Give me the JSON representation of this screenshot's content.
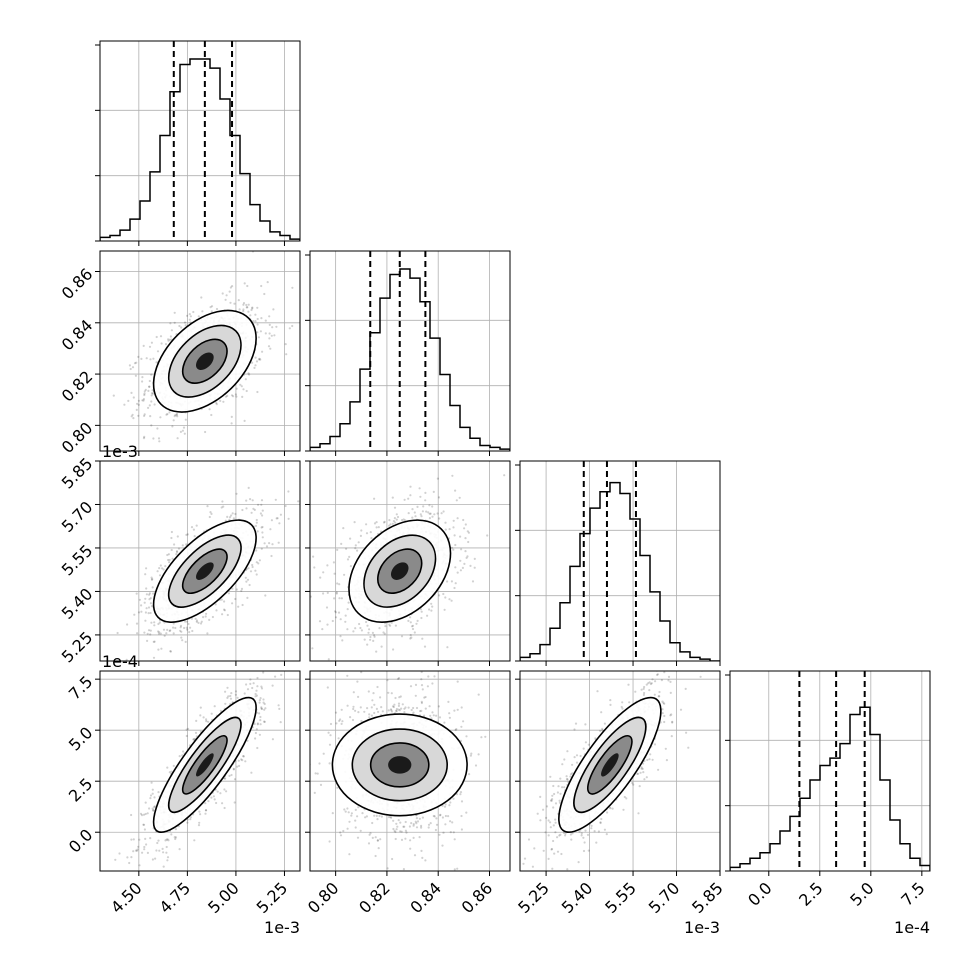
{
  "chart_data": {
    "type": "corner",
    "grid": true,
    "n_params": 4,
    "params": [
      {
        "scale_label": "1e-3",
        "range": [
          4.3,
          5.33
        ],
        "ticks": [
          4.5,
          4.75,
          5.0,
          5.25
        ],
        "tick_labels": [
          "4.50",
          "4.75",
          "5.00",
          "5.25"
        ],
        "quantiles": [
          4.68,
          4.84,
          4.98
        ],
        "mean": 4.84,
        "sd": 0.12
      },
      {
        "scale_label": "",
        "range": [
          0.79,
          0.868
        ],
        "ticks": [
          0.8,
          0.82,
          0.84,
          0.86
        ],
        "tick_labels": [
          "0.80",
          "0.82",
          "0.84",
          "0.86"
        ],
        "quantiles": [
          0.8135,
          0.825,
          0.835
        ],
        "mean": 0.825,
        "sd": 0.009
      },
      {
        "scale_label": "1e-3",
        "range": [
          5.16,
          5.85
        ],
        "ticks": [
          5.25,
          5.4,
          5.55,
          5.7,
          5.85
        ],
        "tick_labels": [
          "5.25",
          "5.40",
          "5.55",
          "5.70",
          "5.85"
        ],
        "quantiles": [
          5.38,
          5.46,
          5.56
        ],
        "mean": 5.47,
        "sd": 0.08
      },
      {
        "scale_label": "1e-4",
        "range": [
          -1.9,
          7.9
        ],
        "ticks": [
          0.0,
          2.5,
          5.0,
          7.5
        ],
        "tick_labels": [
          "0.0",
          "2.5",
          "5.0",
          "7.5"
        ],
        "quantiles": [
          1.5,
          3.3,
          4.7
        ],
        "mean": 3.3,
        "sd": 1.5
      }
    ],
    "correlations": [
      [
        1.0,
        0.45,
        0.65,
        0.85
      ],
      [
        0.45,
        1.0,
        0.35,
        0.0
      ],
      [
        0.65,
        0.35,
        1.0,
        0.8
      ],
      [
        0.85,
        0.0,
        0.8,
        1.0
      ]
    ],
    "histograms": [
      [
        0.02,
        0.03,
        0.06,
        0.12,
        0.22,
        0.38,
        0.58,
        0.82,
        0.97,
        1.0,
        1.0,
        0.95,
        0.78,
        0.58,
        0.37,
        0.2,
        0.11,
        0.05,
        0.03,
        0.01
      ],
      [
        0.02,
        0.04,
        0.08,
        0.15,
        0.27,
        0.45,
        0.65,
        0.84,
        0.97,
        1.0,
        0.95,
        0.82,
        0.62,
        0.42,
        0.25,
        0.13,
        0.07,
        0.03,
        0.02,
        0.01
      ],
      [
        0.02,
        0.04,
        0.09,
        0.18,
        0.32,
        0.52,
        0.7,
        0.84,
        0.93,
        0.98,
        0.92,
        0.78,
        0.58,
        0.38,
        0.22,
        0.1,
        0.05,
        0.02,
        0.01,
        0.0
      ],
      [
        0.02,
        0.04,
        0.07,
        0.1,
        0.15,
        0.22,
        0.3,
        0.4,
        0.5,
        0.58,
        0.62,
        0.7,
        0.86,
        0.9,
        0.75,
        0.5,
        0.28,
        0.15,
        0.07,
        0.03
      ]
    ]
  }
}
